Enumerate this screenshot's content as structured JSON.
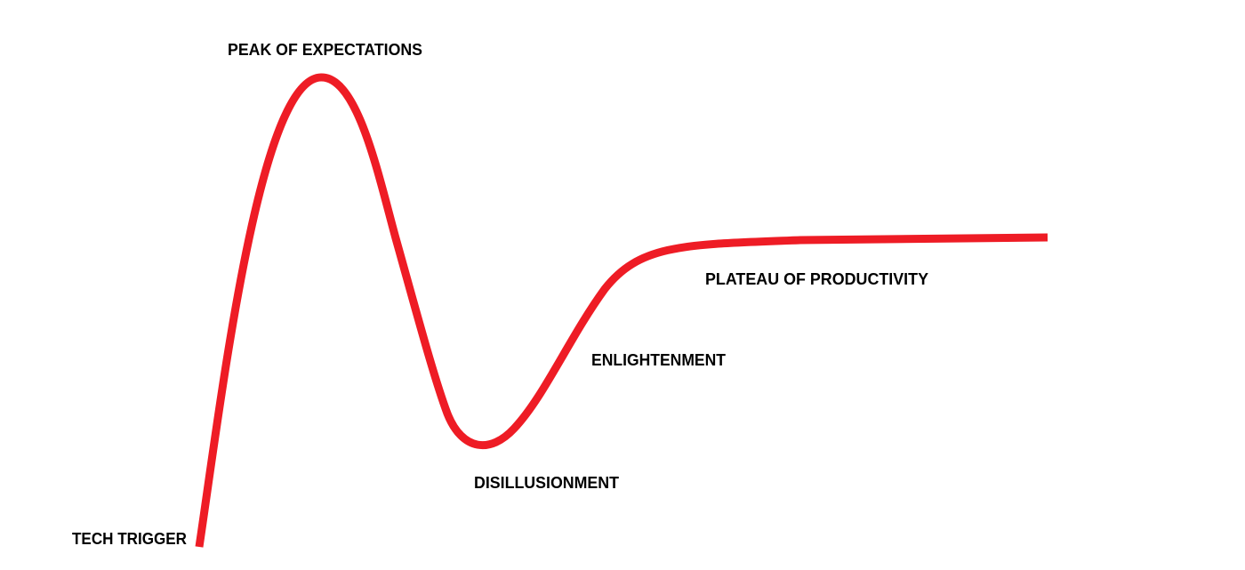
{
  "labels": {
    "tech_trigger": "TECH TRIGGER",
    "peak": "PEAK OF EXPECTATIONS",
    "disillusionment": "DISILLUSIONMENT",
    "enlightenment": "ENLIGHTENMENT",
    "plateau": "PLATEAU OF PRODUCTIVITY"
  },
  "colors": {
    "curve": "#ee1c25",
    "text": "#000000",
    "background": "#ffffff"
  }
}
